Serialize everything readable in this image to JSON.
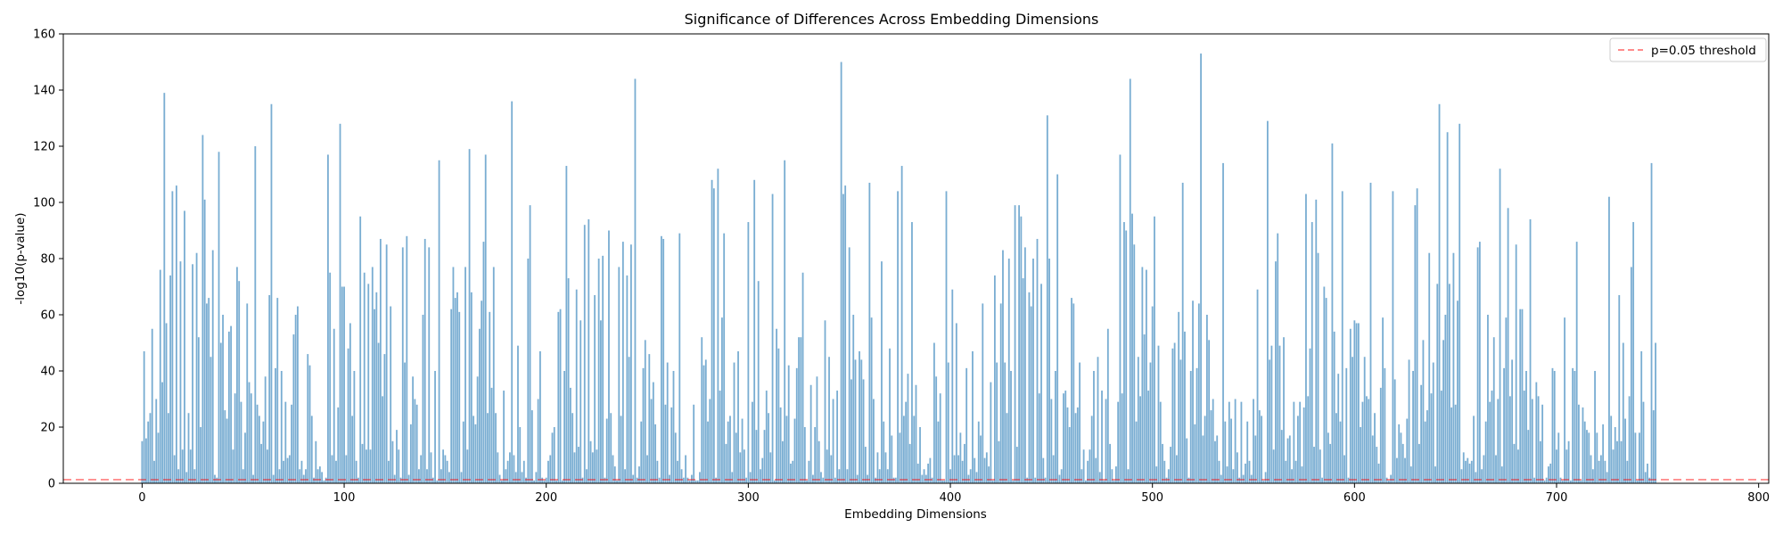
{
  "chart_data": {
    "type": "bar",
    "title": "Significance of Differences Across Embedding Dimensions",
    "xlabel": "Embedding Dimensions",
    "ylabel": "-log10(p-value)",
    "xlim": [
      -39,
      805
    ],
    "ylim": [
      0,
      160
    ],
    "xticks": [
      0,
      100,
      200,
      300,
      400,
      500,
      600,
      700,
      800
    ],
    "yticks": [
      0,
      20,
      40,
      60,
      80,
      100,
      120,
      140,
      160
    ],
    "grid": false,
    "legend_position": "top-right",
    "n_dimensions": 768,
    "bar_color": "#1f77b4",
    "bar_alpha": 0.6,
    "threshold": {
      "value": 1.301,
      "label": "p=0.05 threshold",
      "color": "#ff0000",
      "style": "dashed"
    },
    "series": [
      {
        "values": [
          15,
          47,
          16,
          22,
          25,
          55,
          8,
          30,
          18,
          76,
          36,
          139,
          57,
          25,
          74,
          104,
          10,
          106,
          5,
          79,
          12,
          97,
          4,
          25,
          12,
          78,
          5,
          82,
          52,
          20,
          124,
          101,
          64,
          66,
          45,
          83,
          3,
          2,
          118,
          50,
          60,
          26,
          23,
          54,
          56,
          12,
          32,
          77,
          72,
          29,
          5,
          18,
          64,
          36,
          32,
          3,
          120,
          28,
          24,
          14,
          22,
          38,
          12,
          67,
          135,
          3,
          41,
          66,
          5,
          40,
          8,
          29,
          9,
          10,
          28,
          53,
          60,
          63,
          5,
          8,
          3,
          5,
          46,
          42,
          24,
          2,
          15,
          5,
          6,
          4,
          1,
          2,
          117,
          75,
          10,
          55,
          8,
          27,
          128,
          70,
          70,
          10,
          48,
          57,
          24,
          40,
          8,
          2,
          95,
          14,
          75,
          12,
          71,
          12,
          77,
          62,
          68,
          50,
          87,
          31,
          46,
          85,
          8,
          63,
          15,
          3,
          19,
          12,
          2,
          84,
          43,
          88,
          3,
          21,
          38,
          30,
          28,
          5,
          10,
          60,
          87,
          5,
          84,
          11,
          2,
          40,
          1,
          115,
          5,
          12,
          10,
          8,
          4,
          62,
          77,
          66,
          68,
          61,
          4,
          22,
          77,
          12,
          119,
          68,
          24,
          21,
          38,
          55,
          65,
          86,
          117,
          25,
          61,
          34,
          77,
          25,
          11,
          3,
          1,
          33,
          5,
          8,
          11,
          136,
          10,
          4,
          49,
          20,
          4,
          8,
          2,
          80,
          99,
          26,
          1,
          4,
          30,
          47,
          2,
          1,
          2,
          8,
          10,
          18,
          20,
          1,
          61,
          62,
          1,
          40,
          113,
          73,
          34,
          25,
          11,
          69,
          13,
          58,
          2,
          92,
          5,
          94,
          15,
          11,
          67,
          12,
          80,
          58,
          81,
          2,
          23,
          90,
          25,
          10,
          6,
          1,
          77,
          24,
          86,
          5,
          74,
          45,
          85,
          3,
          144,
          2,
          6,
          22,
          41,
          51,
          10,
          46,
          30,
          36,
          21,
          8,
          2,
          88,
          87,
          28,
          43,
          3,
          27,
          40,
          18,
          8,
          89,
          5,
          2,
          10,
          2,
          1,
          3,
          28,
          1,
          1,
          4,
          52,
          42,
          44,
          22,
          30,
          108,
          105,
          2,
          112,
          33,
          59,
          89,
          14,
          22,
          24,
          4,
          43,
          18,
          47,
          11,
          23,
          12,
          2,
          93,
          4,
          29,
          108,
          19,
          72,
          5,
          9,
          19,
          33,
          25,
          11,
          103,
          1,
          55,
          48,
          27,
          15,
          115,
          24,
          42,
          7,
          8,
          23,
          41,
          52,
          52,
          75,
          20,
          1,
          8,
          35,
          3,
          20,
          38,
          15,
          4,
          2,
          58,
          12,
          45,
          10,
          30,
          2,
          33,
          5,
          150,
          103,
          106,
          5,
          84,
          37,
          60,
          44,
          3,
          47,
          44,
          37,
          13,
          3,
          107,
          59,
          30,
          2,
          11,
          5,
          79,
          22,
          11,
          5,
          48,
          17,
          2,
          2,
          104,
          18,
          113,
          24,
          29,
          39,
          14,
          93,
          24,
          35,
          7,
          20,
          3,
          5,
          3,
          7,
          9,
          2,
          50,
          38,
          22,
          32,
          1,
          1,
          104,
          43,
          5,
          69,
          10,
          57,
          10,
          18,
          8,
          14,
          41,
          3,
          5,
          47,
          9,
          4,
          22,
          17,
          64,
          9,
          11,
          6,
          36,
          1,
          74,
          43,
          15,
          64,
          83,
          43,
          25,
          80,
          40,
          1,
          99,
          13,
          99,
          95,
          73,
          84,
          2,
          68,
          63,
          80,
          2,
          87,
          32,
          71,
          9,
          2,
          131,
          80,
          30,
          10,
          40,
          110,
          3,
          5,
          32,
          33,
          27,
          20,
          66,
          64,
          25,
          27,
          43,
          5,
          12,
          1,
          8,
          12,
          24,
          40,
          9,
          45,
          4,
          33,
          1,
          30,
          55,
          14,
          5,
          1,
          6,
          29,
          117,
          32,
          93,
          90,
          5,
          144,
          96,
          85,
          22,
          45,
          31,
          77,
          53,
          76,
          33,
          43,
          63,
          95,
          6,
          49,
          29,
          14,
          8,
          2,
          5,
          13,
          48,
          50,
          10,
          61,
          44,
          107,
          54,
          16,
          2,
          40,
          65,
          21,
          41,
          64,
          153,
          17,
          24,
          60,
          51,
          26,
          30,
          15,
          17,
          8,
          3,
          114,
          22,
          6,
          29,
          23,
          5,
          30,
          11,
          2,
          29,
          3,
          7,
          22,
          8,
          3,
          30,
          17,
          69,
          26,
          24,
          1,
          4,
          129,
          44,
          49,
          12,
          79,
          89,
          49,
          19,
          52,
          8,
          16,
          17,
          5,
          29,
          8,
          24,
          29,
          6,
          27,
          103,
          31,
          48,
          93,
          13,
          101,
          82,
          12,
          2,
          70,
          66,
          18,
          14,
          121,
          54,
          25,
          39,
          22,
          104,
          10,
          41,
          2,
          55,
          45,
          58,
          57,
          57,
          20,
          29,
          45,
          31,
          30,
          107,
          17,
          25,
          13,
          7,
          34,
          59,
          41,
          2,
          1,
          3,
          104,
          37,
          9,
          21,
          18,
          14,
          9,
          23,
          44,
          6,
          40,
          99,
          105,
          14,
          35,
          51,
          22,
          26,
          82,
          32,
          43,
          6,
          71,
          135,
          33,
          51,
          60,
          125,
          71,
          27,
          82,
          28,
          65,
          128,
          5,
          11,
          8,
          9,
          7,
          8,
          24,
          4,
          84,
          86,
          5,
          10,
          22,
          60,
          29,
          33,
          52,
          10,
          30,
          112,
          6,
          41,
          59,
          98,
          31,
          44,
          14,
          85,
          12,
          62,
          62,
          33,
          40,
          19,
          94,
          30,
          2,
          36,
          31,
          15,
          28,
          1,
          2,
          6,
          7,
          41,
          40,
          12,
          18,
          2,
          1,
          59,
          12,
          15,
          1,
          41,
          40,
          86,
          28,
          1,
          27,
          22,
          19,
          18,
          10,
          5,
          40,
          18,
          8,
          10,
          21,
          8,
          4,
          102,
          24,
          12,
          20,
          15,
          67,
          15,
          50,
          23,
          8,
          31,
          77,
          93,
          18,
          1,
          18,
          47,
          29,
          4,
          7,
          2,
          114,
          26,
          50
        ]
      }
    ]
  }
}
